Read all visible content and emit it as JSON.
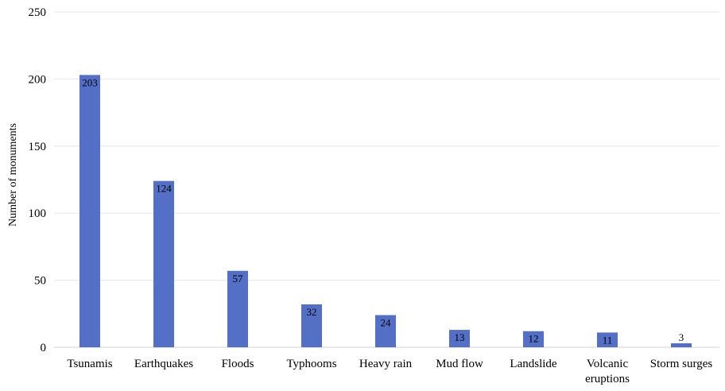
{
  "chart_data": {
    "type": "bar",
    "title": "",
    "xlabel": "",
    "ylabel": "Number of monuments",
    "ylim": [
      0,
      250
    ],
    "yticks": [
      0,
      50,
      100,
      150,
      200,
      250
    ],
    "grid": true,
    "legend": "none",
    "categories": [
      "Tsunamis",
      "Earthquakes",
      "Floods",
      "Typhooms",
      "Heavy rain",
      "Mud flow",
      "Landslide",
      "Volcanic eruptions",
      "Storm surges"
    ],
    "category_lines": [
      [
        "Tsunamis"
      ],
      [
        "Earthquakes"
      ],
      [
        "Floods"
      ],
      [
        "Typhooms"
      ],
      [
        "Heavy rain"
      ],
      [
        "Mud flow"
      ],
      [
        "Landslide"
      ],
      [
        "Volcanic",
        "eruptions"
      ],
      [
        "Storm surges"
      ]
    ],
    "values": [
      203,
      124,
      57,
      32,
      24,
      13,
      12,
      11,
      3
    ],
    "data_labels": [
      "203",
      "124",
      "57",
      "32",
      "24",
      "13",
      "12",
      "11",
      "3"
    ],
    "colors": {
      "bar": "#5470c6",
      "grid": "#e6e6e6"
    }
  }
}
